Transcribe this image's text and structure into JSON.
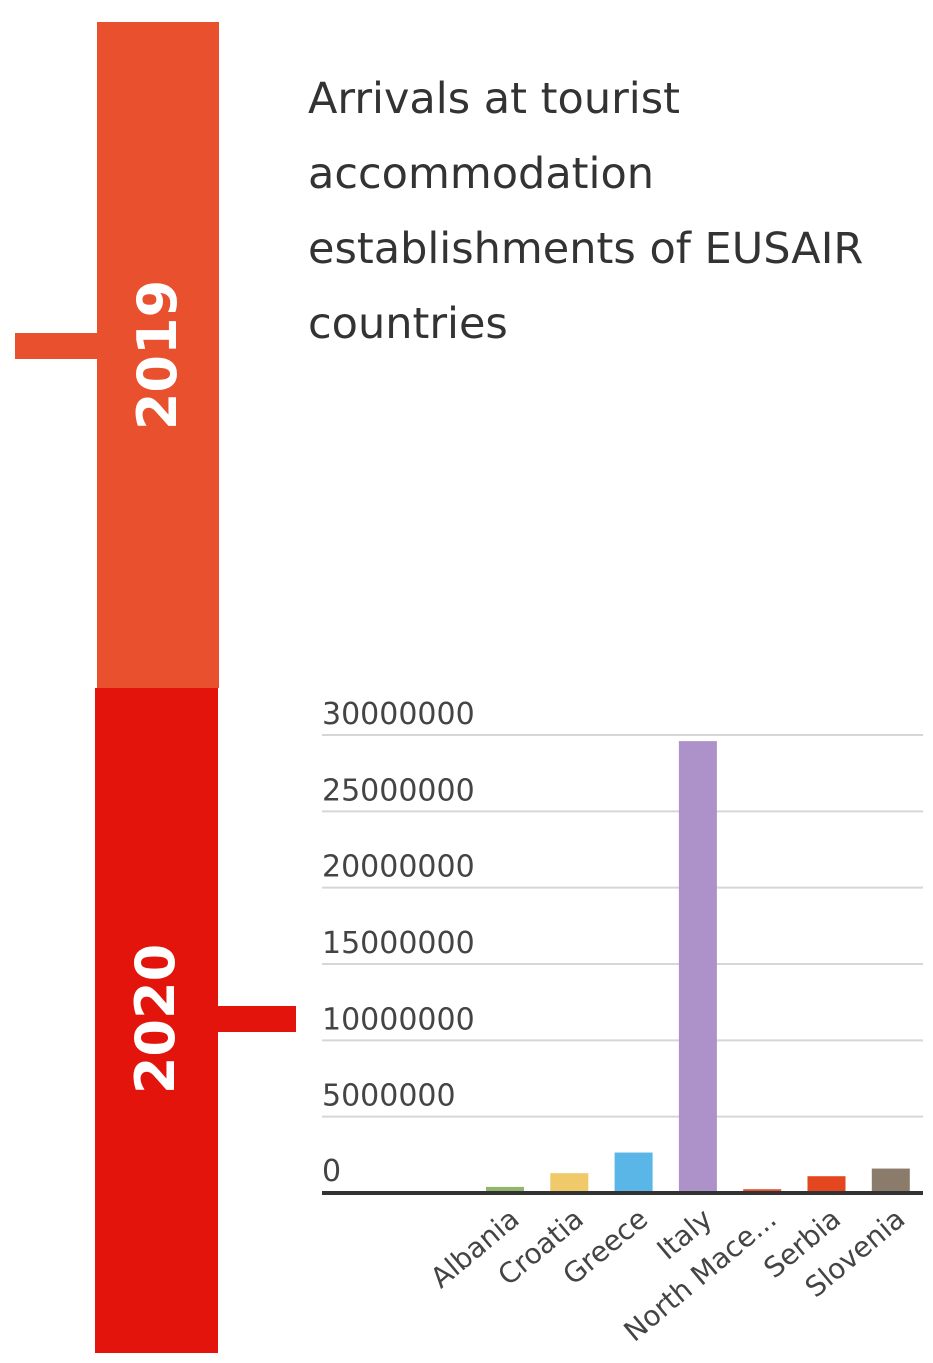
{
  "timeline": {
    "year_2019": "2019",
    "year_2020": "2020",
    "colors": {
      "year_2019": "#e8502e",
      "year_2020": "#e3140c"
    }
  },
  "chart_data": {
    "type": "bar",
    "title": "Arrivals at tourist accommodation establishments of EUSAIR countries",
    "categories": [
      "Albania",
      "Croatia",
      "Greece",
      "Italy",
      "North Mace...",
      "Serbia",
      "Slovenia"
    ],
    "values": [
      400000,
      1300000,
      2650000,
      29600000,
      250000,
      1100000,
      1600000
    ],
    "colors": [
      "#8fb66b",
      "#f0c96a",
      "#5ab6e6",
      "#ac92c9",
      "#e8502e",
      "#e4471f",
      "#8b7b6b"
    ],
    "y_ticks": [
      {
        "value": 30000000,
        "label": "30000000"
      },
      {
        "value": 25000000,
        "label": "25000000"
      },
      {
        "value": 20000000,
        "label": "20000000"
      },
      {
        "value": 15000000,
        "label": "15000000"
      },
      {
        "value": 10000000,
        "label": "10000000"
      },
      {
        "value": 5000000,
        "label": "5000000"
      },
      {
        "value": 0,
        "label": "0"
      }
    ],
    "ylim": [
      0,
      30000000
    ],
    "xlabel": "",
    "ylabel": "",
    "grid": true,
    "legend": "none"
  }
}
